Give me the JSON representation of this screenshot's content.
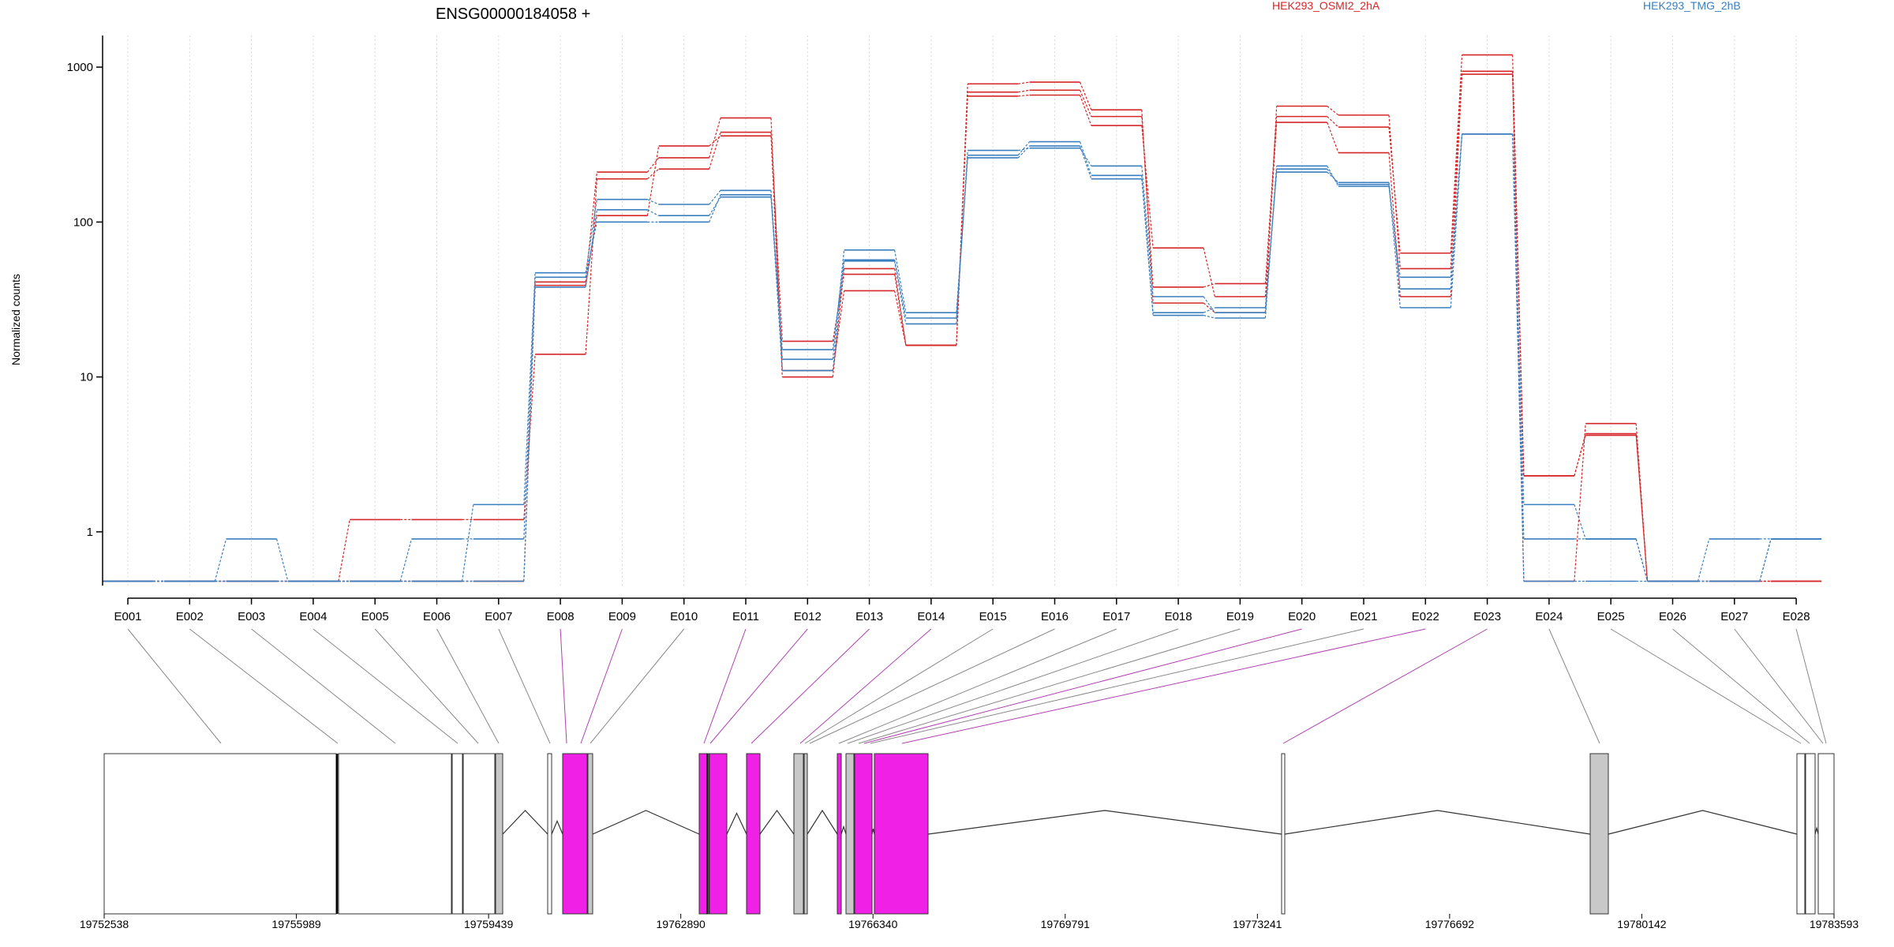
{
  "chart_data": {
    "type": "line",
    "title": "ENSG00000184058 +",
    "ylabel": "Normalized counts",
    "xlabel": "",
    "y_scale": "log",
    "ylim": [
      0.45,
      1600
    ],
    "y_ticks": [
      1,
      10,
      100,
      1000
    ],
    "y_tick_labels": [
      "1",
      "10",
      "100",
      "1000"
    ],
    "grid": "vertical-dotted",
    "categories": [
      "E001",
      "E002",
      "E003",
      "E004",
      "E005",
      "E006",
      "E007",
      "E008",
      "E009",
      "E010",
      "E011",
      "E012",
      "E013",
      "E014",
      "E015",
      "E016",
      "E017",
      "E018",
      "E019",
      "E020",
      "E021",
      "E022",
      "E023",
      "E024",
      "E025",
      "E026",
      "E027",
      "E028"
    ],
    "legend": [
      {
        "label": "HEK293_OSMI2_2hA",
        "color": "#d62728"
      },
      {
        "label": "HEK293_TMG_2hB",
        "color": "#3a7fbf"
      }
    ],
    "series": [
      {
        "group": "HEK293_OSMI2_2hA",
        "color": "#d62728",
        "values": [
          0.48,
          0.48,
          0.48,
          0.48,
          1.2,
          1.2,
          1.2,
          14,
          190,
          220,
          380,
          17,
          46,
          16,
          690,
          710,
          480,
          38,
          40,
          480,
          410,
          63,
          1200,
          2.3,
          4.3,
          0.48,
          0.48,
          0.48
        ]
      },
      {
        "group": "HEK293_OSMI2_2hA",
        "color": "#d62728",
        "values": [
          0.48,
          0.48,
          0.48,
          0.48,
          0.48,
          0.48,
          0.48,
          41,
          210,
          260,
          470,
          11,
          36,
          16,
          780,
          800,
          530,
          30,
          26,
          560,
          490,
          50,
          940,
          0.48,
          5.0,
          0.48,
          0.48,
          0.48
        ]
      },
      {
        "group": "HEK293_OSMI2_2hA",
        "color": "#d62728",
        "values": [
          0.48,
          0.48,
          0.48,
          0.48,
          0.48,
          0.48,
          0.48,
          39,
          110,
          310,
          360,
          10,
          50,
          16,
          650,
          660,
          420,
          68,
          33,
          440,
          280,
          33,
          900,
          2.3,
          4.2,
          0.48,
          0.48,
          0.48
        ]
      },
      {
        "group": "HEK293_TMG_2hB",
        "color": "#3a7fbf",
        "values": [
          0.48,
          0.48,
          0.9,
          0.48,
          0.48,
          0.9,
          0.9,
          44,
          100,
          100,
          150,
          11,
          56,
          22,
          290,
          300,
          230,
          33,
          26,
          230,
          170,
          44,
          370,
          0.9,
          0.9,
          0.48,
          0.9,
          0.9
        ]
      },
      {
        "group": "HEK293_TMG_2hB",
        "color": "#3a7fbf",
        "values": [
          0.48,
          0.48,
          0.48,
          0.48,
          0.48,
          0.48,
          1.5,
          47,
          140,
          130,
          160,
          13,
          66,
          26,
          270,
          330,
          200,
          26,
          28,
          210,
          180,
          37,
          370,
          1.5,
          0.9,
          0.48,
          0.48,
          0.9
        ]
      },
      {
        "group": "HEK293_TMG_2hB",
        "color": "#3a7fbf",
        "values": [
          0.48,
          0.48,
          0.48,
          0.48,
          0.48,
          0.48,
          0.48,
          38,
          120,
          110,
          145,
          15,
          57,
          24,
          260,
          310,
          190,
          25,
          24,
          220,
          175,
          28,
          370,
          0.48,
          0.48,
          0.48,
          0.48,
          0.9
        ]
      }
    ],
    "gene_model": {
      "coordinate_ticks": [
        "19752538",
        "19755989",
        "19759439",
        "19762890",
        "19766340",
        "19769791",
        "19773241",
        "19776692",
        "19780142",
        "19783593"
      ],
      "exon_colors": {
        "default": "#ffffff",
        "significant": "#f020e6",
        "gray": "#c8c8c8"
      }
    }
  }
}
